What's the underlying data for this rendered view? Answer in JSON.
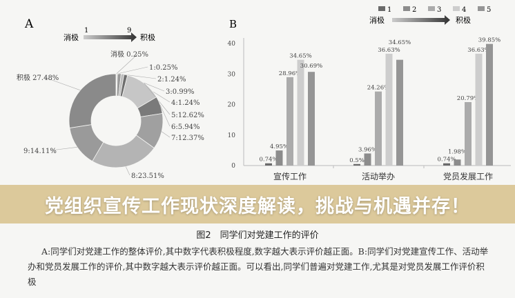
{
  "chart_data": [
    {
      "type": "pie",
      "panel": "A",
      "scale": {
        "low_label": "消极",
        "high_label": "积极",
        "low_num": "1",
        "high_num": "9"
      },
      "slices": [
        {
          "label": "消极",
          "value": 0.25,
          "text": "消极  0.25%",
          "color": "#b0b0b0"
        },
        {
          "label": "1",
          "value": 0.25,
          "text": "1:0.25%",
          "color": "#777777"
        },
        {
          "label": "2",
          "value": 1.24,
          "text": "2:1.24%",
          "color": "#999999"
        },
        {
          "label": "3",
          "value": 0.99,
          "text": "3:0.99%",
          "color": "#bbbbbb"
        },
        {
          "label": "4",
          "value": 1.24,
          "text": "4:1.24%",
          "color": "#6e6e6e"
        },
        {
          "label": "5",
          "value": 12.62,
          "text": "5:12.62%",
          "color": "#c6c6c6"
        },
        {
          "label": "6",
          "value": 5.94,
          "text": "6:5.94%",
          "color": "#7a7a7a"
        },
        {
          "label": "7",
          "value": 12.37,
          "text": "7:12.37%",
          "color": "#a0a0a0"
        },
        {
          "label": "8",
          "value": 23.51,
          "text": "8:23.51%",
          "color": "#b4b4b4"
        },
        {
          "label": "9",
          "value": 14.11,
          "text": "9:14.11%",
          "color": "#9a9a9a"
        },
        {
          "label": "积极",
          "value": 27.48,
          "text": "积极  27.48%",
          "color": "#8a8a8a"
        }
      ]
    },
    {
      "type": "bar",
      "panel": "B",
      "categories": [
        "宣传工作",
        "活动举办",
        "党员发展工作"
      ],
      "ylim": [
        0,
        40
      ],
      "yticks": [
        "0",
        "10",
        "20",
        "30",
        "40"
      ],
      "legend": {
        "items": [
          "1",
          "2",
          "3",
          "4",
          "5"
        ],
        "low_label": "消极",
        "high_label": "积极",
        "placement": "top-right"
      },
      "series": [
        {
          "name": "1",
          "color": "#6a6a6a",
          "values": [
            0.74,
            0.5,
            0.74
          ],
          "labels": [
            "0.74%",
            "0.5%",
            "0.74%"
          ]
        },
        {
          "name": "2",
          "color": "#8c8c8c",
          "values": [
            4.95,
            3.96,
            1.98
          ],
          "labels": [
            "4.95%",
            "3.96%",
            "1.98%"
          ]
        },
        {
          "name": "3",
          "color": "#ababab",
          "values": [
            28.96,
            24.26,
            20.79
          ],
          "labels": [
            "28.96%",
            "24.26%",
            "20.79%"
          ]
        },
        {
          "name": "4",
          "color": "#cdcdcd",
          "values": [
            34.65,
            36.63,
            36.63
          ],
          "labels": [
            "34.65%",
            "36.63%",
            "36.63%"
          ]
        },
        {
          "name": "5",
          "color": "#959595",
          "values": [
            30.69,
            34.65,
            39.85
          ],
          "labels": [
            "30.69%",
            "34.65%",
            "39.85%"
          ]
        }
      ]
    }
  ],
  "caption": "图2　同学们对党建工作的评价",
  "paragraph": "A:同学们对党建工作的整体评价,其中数字代表积极程度,数字越大表示评价越正面。B:同学们对党建宣传工作、活动举办和党员发展工作的评价,其中数字越大表示评价越正面。可以看出,同学们普遍对党建工作,尤其是对党员发展工作评价积极",
  "banner": "党组织宣传工作现状深度解读，挑战与机遇并存！"
}
